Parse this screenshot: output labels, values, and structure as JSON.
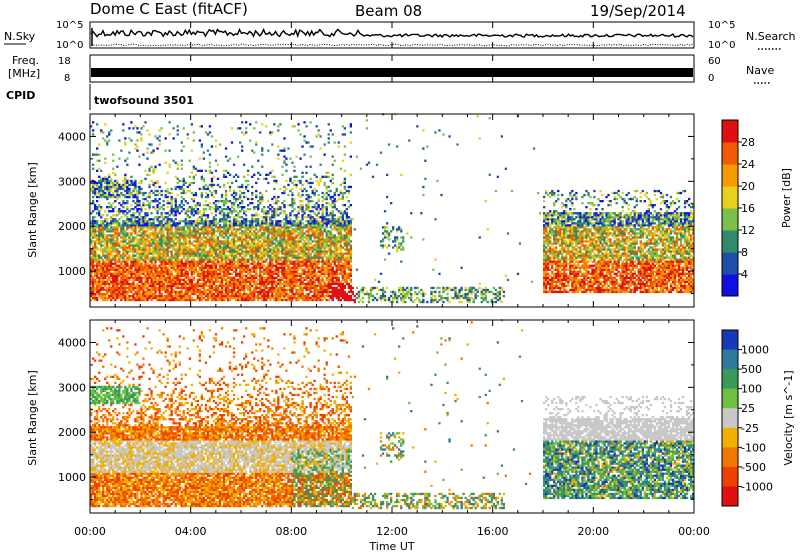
{
  "header": {
    "radar": "Dome C East (fitACF)",
    "beam": "Beam 08",
    "date": "19/Sep/2014"
  },
  "nsky_panel": {
    "label": "N.Sky",
    "top_tick": "10^5",
    "bottom_tick": "10^0",
    "right_top_tick": "10^5",
    "right_bottom_tick": "10^0",
    "right_label": "N.Search"
  },
  "freq_panel": {
    "label_line1": "Freq.",
    "label_line2": "[MHz]",
    "left_top_tick": "18",
    "left_bottom_tick": "8",
    "right_top_tick": "60",
    "right_bottom_tick": "0",
    "right_label": "Nave"
  },
  "cpid": {
    "label": "CPID",
    "value": "twofsound 3501"
  },
  "chart_data": [
    {
      "type": "heatmap",
      "name": "power",
      "ylabel": "Slant Range [km]",
      "ylim": [
        200,
        4500
      ],
      "yticks": [
        1000,
        2000,
        3000,
        4000
      ],
      "colorbar_label": "Power [dB]",
      "colorbar_ticks": [
        "4",
        "8",
        "12",
        "16",
        "20",
        "24",
        "28"
      ],
      "colorbar_colors": [
        "#1010e0",
        "#1c50a8",
        "#2f8b6a",
        "#7ac04a",
        "#e8d020",
        "#f59a00",
        "#f05a00",
        "#e01010"
      ],
      "xrange_hours": [
        0,
        24
      ]
    },
    {
      "type": "heatmap",
      "name": "velocity",
      "ylabel": "Slant Range [km]",
      "ylim": [
        200,
        4500
      ],
      "yticks": [
        1000,
        2000,
        3000,
        4000
      ],
      "colorbar_label": "Velocity [m s^-1]",
      "colorbar_ticks": [
        "1000",
        "500",
        "100",
        "25",
        "-25",
        "-100",
        "-500",
        "-1000"
      ],
      "colorbar_colors": [
        "#1838b8",
        "#2e7a9a",
        "#3a9a5a",
        "#70c040",
        "#c8c8c8",
        "#f0b000",
        "#f07800",
        "#f04000",
        "#e01010"
      ],
      "xrange_hours": [
        0,
        24
      ]
    }
  ],
  "xaxis": {
    "label": "Time UT",
    "ticks": [
      "00:00",
      "04:00",
      "08:00",
      "12:00",
      "16:00",
      "20:00",
      "00:00"
    ]
  }
}
